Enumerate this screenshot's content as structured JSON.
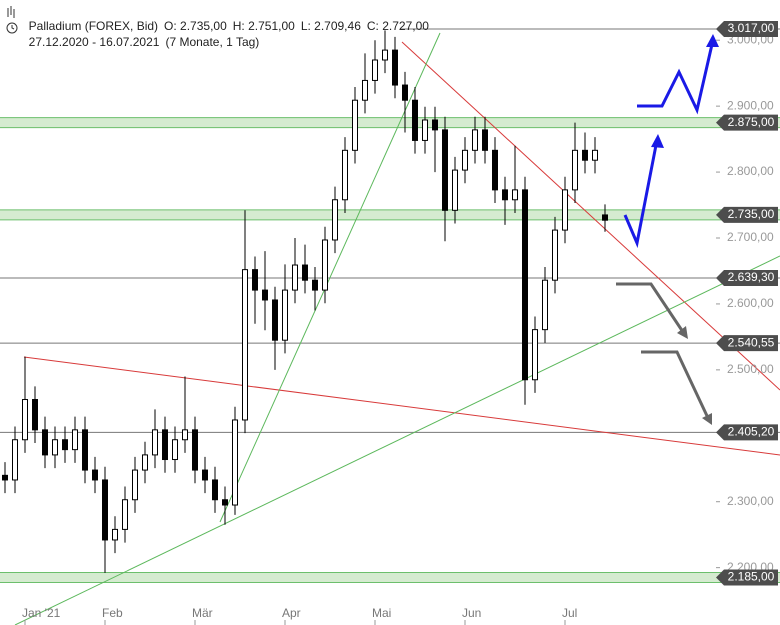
{
  "chart_data": {
    "type": "candlestick",
    "title": "Palladium (FOREX, Bid)",
    "ohlc_labels": [
      "O: 2.735,00",
      "H: 2.751,00",
      "L: 2.709,46",
      "C: 2.727,00"
    ],
    "date_range": "27.12.2020 - 16.07.2021",
    "duration": "(7 Monate, 1 Tag)",
    "categories": [
      null,
      null,
      "Jan '21",
      null,
      null,
      null,
      null,
      null,
      null,
      null,
      "Feb",
      null,
      null,
      null,
      null,
      null,
      null,
      null,
      null,
      "Mär",
      null,
      null,
      null,
      null,
      null,
      null,
      null,
      null,
      "Apr",
      null,
      null,
      null,
      null,
      null,
      null,
      null,
      null,
      "Mai",
      null,
      null,
      null,
      null,
      null,
      null,
      null,
      null,
      "Jun",
      null,
      null,
      null,
      null,
      null,
      null,
      null,
      null,
      null,
      "Jul",
      null,
      null,
      null,
      null
    ],
    "open": [
      2340,
      2333,
      2394,
      2455,
      2409,
      2371,
      2394,
      2379,
      2409,
      2348,
      2333,
      2242,
      2258,
      2303,
      2348,
      2371,
      2409,
      2364,
      2394,
      2409,
      2348,
      2333,
      2303,
      2295,
      2424,
      2652,
      2621,
      2606,
      2545,
      2621,
      2659,
      2636,
      2621,
      2697,
      2758,
      2833,
      2909,
      2939,
      2970,
      2985,
      2932,
      2909,
      2848,
      2879,
      2864,
      2742,
      2803,
      2833,
      2864,
      2833,
      2773,
      2758,
      2773,
      2485,
      2561,
      2636,
      2712,
      2773,
      2833,
      2818,
      2735
    ],
    "high": [
      2360,
      2414,
      2520,
      2475,
      2429,
      2414,
      2414,
      2429,
      2429,
      2368,
      2353,
      2278,
      2323,
      2368,
      2391,
      2440,
      2429,
      2414,
      2490,
      2429,
      2368,
      2353,
      2323,
      2444,
      2742,
      2672,
      2680,
      2626,
      2660,
      2700,
      2690,
      2656,
      2717,
      2778,
      2853,
      2929,
      2980,
      3000,
      3015,
      3005,
      2952,
      2929,
      2899,
      2899,
      2884,
      2823,
      2853,
      2884,
      2884,
      2853,
      2793,
      2840,
      2793,
      2581,
      2656,
      2732,
      2793,
      2875,
      2860,
      2853,
      2751
    ],
    "low": [
      2313,
      2313,
      2374,
      2389,
      2351,
      2351,
      2359,
      2359,
      2328,
      2313,
      2192,
      2222,
      2238,
      2283,
      2328,
      2351,
      2344,
      2344,
      2374,
      2328,
      2313,
      2283,
      2265,
      2280,
      2404,
      2570,
      2560,
      2500,
      2525,
      2601,
      2616,
      2590,
      2601,
      2677,
      2738,
      2813,
      2889,
      2919,
      2950,
      2912,
      2860,
      2828,
      2828,
      2800,
      2695,
      2722,
      2783,
      2813,
      2813,
      2753,
      2720,
      2738,
      2447,
      2465,
      2541,
      2616,
      2692,
      2753,
      2798,
      2798,
      2709.46
    ],
    "close": [
      2333,
      2394,
      2455,
      2409,
      2371,
      2394,
      2379,
      2409,
      2348,
      2333,
      2242,
      2258,
      2303,
      2348,
      2371,
      2409,
      2364,
      2394,
      2409,
      2348,
      2333,
      2303,
      2295,
      2424,
      2652,
      2621,
      2606,
      2545,
      2621,
      2659,
      2636,
      2621,
      2697,
      2758,
      2833,
      2909,
      2939,
      2970,
      2985,
      2932,
      2909,
      2848,
      2879,
      2864,
      2742,
      2803,
      2833,
      2864,
      2833,
      2773,
      2758,
      2773,
      2485,
      2561,
      2636,
      2712,
      2773,
      2833,
      2818,
      2833,
      2727
    ],
    "color": "#000000",
    "ylim": [
      2113,
      3061
    ],
    "yticks": [
      {
        "value": 3000,
        "label": "3.000,00"
      },
      {
        "value": 2900,
        "label": "2.900,00"
      },
      {
        "value": 2800,
        "label": "2.800,00"
      },
      {
        "value": 2700,
        "label": "2.700,00"
      },
      {
        "value": 2600,
        "label": "2.600,00"
      },
      {
        "value": 2500,
        "label": "2.500,00"
      },
      {
        "value": 2300,
        "label": "2.300,00"
      },
      {
        "value": 2200,
        "label": "2.200,00"
      }
    ],
    "levels": [
      {
        "value": 3017,
        "label": "3.017,00",
        "style": "line"
      },
      {
        "value": 2875,
        "label": "2.875,00",
        "style": "band"
      },
      {
        "value": 2735,
        "label": "2.735,00",
        "style": "band"
      },
      {
        "value": 2639.3,
        "label": "2.639,30",
        "style": "line"
      },
      {
        "value": 2540.55,
        "label": "2.540,55",
        "style": "line"
      },
      {
        "value": 2405.2,
        "label": "2.405,20",
        "style": "line"
      },
      {
        "value": 2185,
        "label": "2.185,00",
        "style": "band"
      }
    ]
  }
}
